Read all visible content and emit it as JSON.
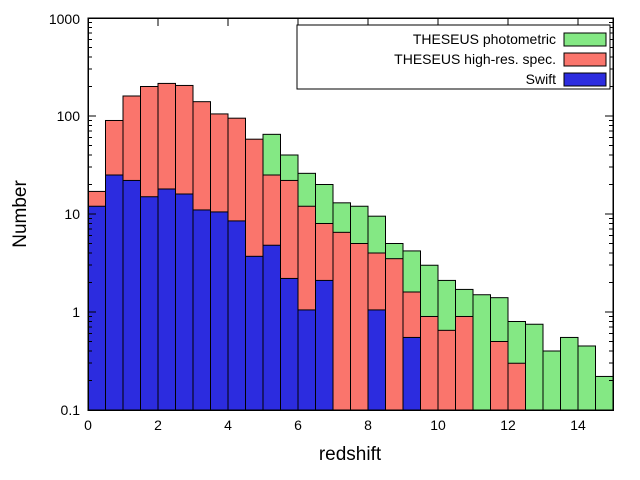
{
  "chart_data": {
    "type": "bar",
    "title": "",
    "xlabel": "redshift",
    "ylabel": "Number",
    "x_range": [
      0,
      15
    ],
    "y_range": [
      0.1,
      1000
    ],
    "y_scale": "log",
    "grid": false,
    "legend_position": "top-right",
    "bin_width": 0.5,
    "bin_centers": [
      0.25,
      0.75,
      1.25,
      1.75,
      2.25,
      2.75,
      3.25,
      3.75,
      4.25,
      4.75,
      5.25,
      5.75,
      6.25,
      6.75,
      7.25,
      7.75,
      8.25,
      8.75,
      9.25,
      9.75,
      10.25,
      10.75,
      11.25,
      11.75,
      12.25,
      12.75,
      13.25,
      13.75,
      14.25,
      14.75
    ],
    "series": [
      {
        "name": "THESEUS photometric",
        "color": "#84E884",
        "values": [
          0,
          0,
          0,
          0,
          0,
          0,
          0,
          0,
          0,
          0,
          65,
          40,
          26,
          20,
          13,
          12,
          9.5,
          5,
          4.2,
          3,
          2.1,
          1.7,
          1.5,
          1.4,
          0.8,
          0.75,
          0.4,
          0.55,
          0.45,
          0.22
        ]
      },
      {
        "name": "THESEUS high-res. spec.",
        "color": "#FA756C",
        "values": [
          17,
          90,
          160,
          200,
          215,
          205,
          140,
          105,
          95,
          58,
          25,
          22,
          12,
          8,
          6.5,
          5,
          4,
          3.5,
          1.6,
          0.9,
          0.65,
          0.9,
          0,
          0.5,
          0.3,
          0,
          0,
          0,
          0,
          0
        ]
      },
      {
        "name": "Swift",
        "color": "#2C2CDF",
        "values": [
          12,
          25,
          22,
          15,
          18,
          16,
          11,
          10.5,
          8.5,
          3.7,
          4.8,
          2.2,
          1.05,
          2.1,
          0,
          0,
          1.05,
          0,
          0.55,
          0,
          0,
          0,
          0,
          0,
          0,
          0,
          0,
          0,
          0,
          0
        ]
      }
    ],
    "xticks": [
      0,
      2,
      4,
      6,
      8,
      10,
      12,
      14
    ],
    "xtick_labels": [
      "0",
      "2",
      "4",
      "6",
      "8",
      "10",
      "12",
      "14"
    ],
    "ytick_labels": [
      "0.1",
      "1",
      "10",
      "100",
      "1000"
    ]
  }
}
